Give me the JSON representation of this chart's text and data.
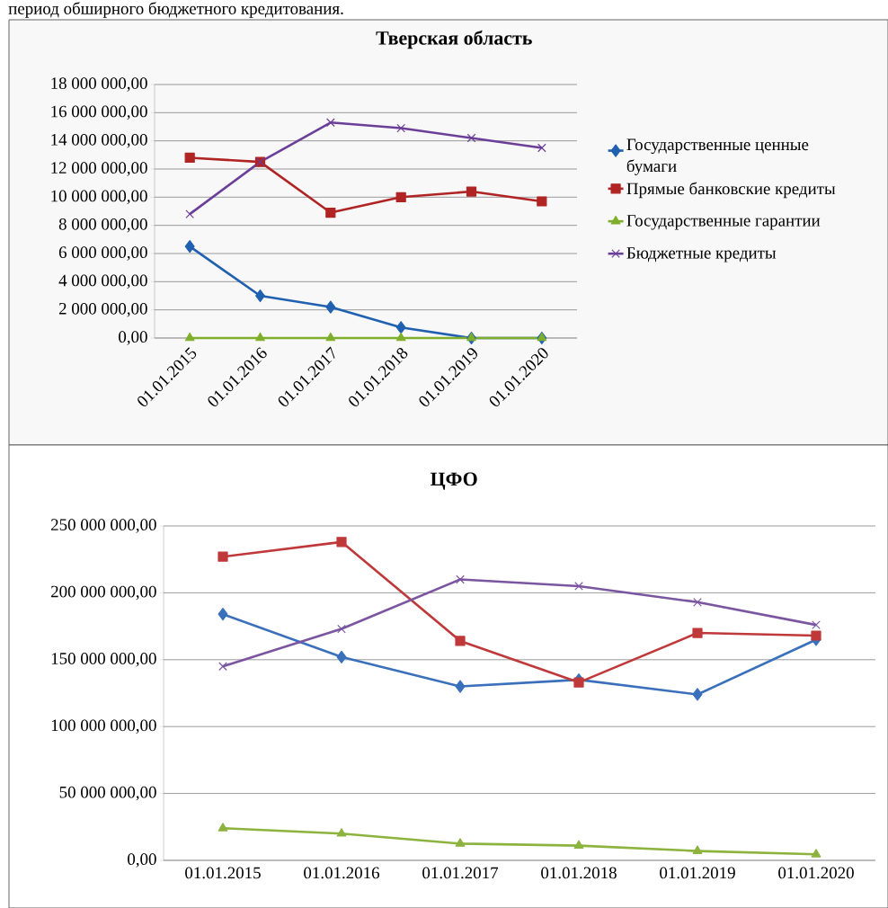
{
  "chart_data": [
    {
      "type": "line",
      "title": "Тверская область",
      "annotations": [
        "период обширного бюджетного кредитования."
      ],
      "categories": [
        "01.01.2015",
        "01.01.2016",
        "01.01.2017",
        "01.01.2018",
        "01.01.2019",
        "01.01.2020"
      ],
      "series": [
        {
          "name": "Государственные ценные бумаги",
          "color": "#2060b0",
          "marker": "diamond",
          "values": [
            6500000,
            3000000,
            2200000,
            750000,
            0,
            0
          ]
        },
        {
          "name": "Прямые банковские кредиты",
          "color": "#b02424",
          "marker": "square",
          "values": [
            12800000,
            12500000,
            8900000,
            10000000,
            10400000,
            9700000
          ]
        },
        {
          "name": "Государственные гарантии",
          "color": "#7faf2a",
          "marker": "triangle",
          "values": [
            0,
            0,
            0,
            0,
            0,
            0
          ]
        },
        {
          "name": "Бюджетные кредиты",
          "color": "#6b3f98",
          "marker": "cross",
          "values": [
            8800000,
            12500000,
            15300000,
            14900000,
            14200000,
            13500000
          ]
        }
      ],
      "ylim": [
        0,
        18000000
      ],
      "yticks": [
        {
          "value": 0,
          "label": "0,00"
        },
        {
          "value": 2000000,
          "label": "2 000 000,00"
        },
        {
          "value": 4000000,
          "label": "4 000 000,00"
        },
        {
          "value": 6000000,
          "label": "6 000 000,00"
        },
        {
          "value": 8000000,
          "label": "8 000 000,00"
        },
        {
          "value": 10000000,
          "label": "10 000 000,00"
        },
        {
          "value": 12000000,
          "label": "12 000 000,00"
        },
        {
          "value": 14000000,
          "label": "14 000 000,00"
        },
        {
          "value": 16000000,
          "label": "16 000 000,00"
        },
        {
          "value": 18000000,
          "label": "18 000 000,00"
        }
      ],
      "grid": "y",
      "legend": "right"
    },
    {
      "type": "line",
      "title": "ЦФО",
      "categories": [
        "01.01.2015",
        "01.01.2016",
        "01.01.2017",
        "01.01.2018",
        "01.01.2019",
        "01.01.2020"
      ],
      "series": [
        {
          "color": "#3a70bb",
          "marker": "diamond",
          "values": [
            184000000,
            152000000,
            130000000,
            135000000,
            124000000,
            165000000
          ]
        },
        {
          "color": "#c0393a",
          "marker": "square",
          "values": [
            227000000,
            238000000,
            164000000,
            133000000,
            170000000,
            168000000
          ]
        },
        {
          "color": "#8db33f",
          "marker": "triangle",
          "values": [
            24000000,
            20000000,
            12500000,
            11000000,
            7000000,
            4500000
          ]
        },
        {
          "color": "#7a55a0",
          "marker": "cross",
          "values": [
            145000000,
            173000000,
            210000000,
            205000000,
            193000000,
            176000000
          ]
        }
      ],
      "ylim": [
        0,
        250000000
      ],
      "yticks": [
        {
          "value": 0,
          "label": "0,00"
        },
        {
          "value": 50000000,
          "label": "50 000 000,00"
        },
        {
          "value": 100000000,
          "label": "100 000 000,00"
        },
        {
          "value": 150000000,
          "label": "150 000 000,00"
        },
        {
          "value": 200000000,
          "label": "200 000 000,00"
        },
        {
          "value": 250000000,
          "label": "250 000 000,00"
        }
      ],
      "grid": "y"
    }
  ]
}
